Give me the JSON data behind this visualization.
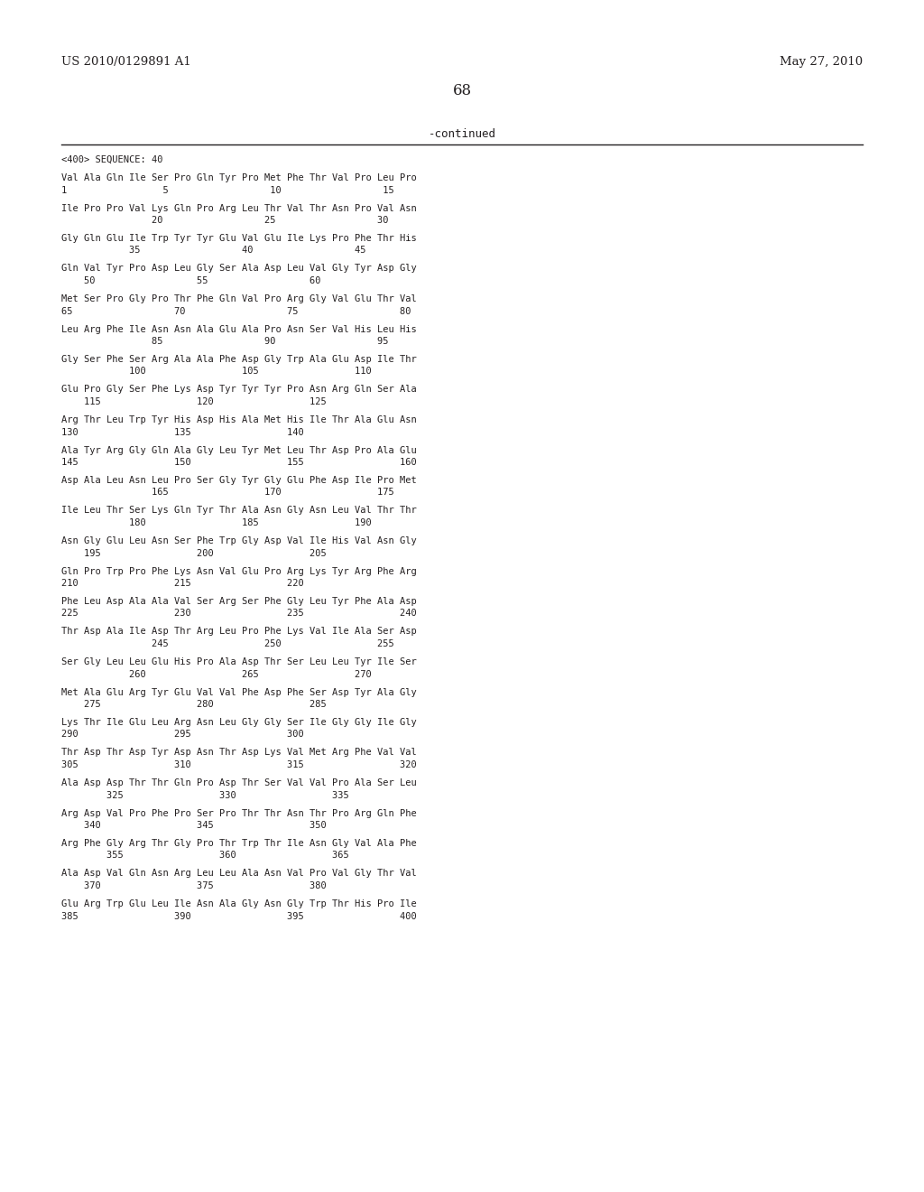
{
  "header_left": "US 2010/0129891 A1",
  "header_right": "May 27, 2010",
  "page_number": "68",
  "continued_text": "-continued",
  "background_color": "#ffffff",
  "text_color": "#231f20",
  "sequence_content": [
    "<400> SEQUENCE: 40",
    "",
    "Val Ala Gln Ile Ser Pro Gln Tyr Pro Met Phe Thr Val Pro Leu Pro",
    "1                 5                  10                  15",
    "",
    "Ile Pro Pro Val Lys Gln Pro Arg Leu Thr Val Thr Asn Pro Val Asn",
    "                20                  25                  30",
    "",
    "Gly Gln Glu Ile Trp Tyr Tyr Glu Val Glu Ile Lys Pro Phe Thr His",
    "            35                  40                  45",
    "",
    "Gln Val Tyr Pro Asp Leu Gly Ser Ala Asp Leu Val Gly Tyr Asp Gly",
    "    50                  55                  60",
    "",
    "Met Ser Pro Gly Pro Thr Phe Gln Val Pro Arg Gly Val Glu Thr Val",
    "65                  70                  75                  80",
    "",
    "Leu Arg Phe Ile Asn Asn Ala Glu Ala Pro Asn Ser Val His Leu His",
    "                85                  90                  95",
    "",
    "Gly Ser Phe Ser Arg Ala Ala Phe Asp Gly Trp Ala Glu Asp Ile Thr",
    "            100                 105                 110",
    "",
    "Glu Pro Gly Ser Phe Lys Asp Tyr Tyr Tyr Pro Asn Arg Gln Ser Ala",
    "    115                 120                 125",
    "",
    "Arg Thr Leu Trp Tyr His Asp His Ala Met His Ile Thr Ala Glu Asn",
    "130                 135                 140",
    "",
    "Ala Tyr Arg Gly Gln Ala Gly Leu Tyr Met Leu Thr Asp Pro Ala Glu",
    "145                 150                 155                 160",
    "",
    "Asp Ala Leu Asn Leu Pro Ser Gly Tyr Gly Glu Phe Asp Ile Pro Met",
    "                165                 170                 175",
    "",
    "Ile Leu Thr Ser Lys Gln Tyr Thr Ala Asn Gly Asn Leu Val Thr Thr",
    "            180                 185                 190",
    "",
    "Asn Gly Glu Leu Asn Ser Phe Trp Gly Asp Val Ile His Val Asn Gly",
    "    195                 200                 205",
    "",
    "Gln Pro Trp Pro Phe Lys Asn Val Glu Pro Arg Lys Tyr Arg Phe Arg",
    "210                 215                 220",
    "",
    "Phe Leu Asp Ala Ala Val Ser Arg Ser Phe Gly Leu Tyr Phe Ala Asp",
    "225                 230                 235                 240",
    "",
    "Thr Asp Ala Ile Asp Thr Arg Leu Pro Phe Lys Val Ile Ala Ser Asp",
    "                245                 250                 255",
    "",
    "Ser Gly Leu Leu Glu His Pro Ala Asp Thr Ser Leu Leu Tyr Ile Ser",
    "            260                 265                 270",
    "",
    "Met Ala Glu Arg Tyr Glu Val Val Phe Asp Phe Ser Asp Tyr Ala Gly",
    "    275                 280                 285",
    "",
    "Lys Thr Ile Glu Leu Arg Asn Leu Gly Gly Ser Ile Gly Gly Ile Gly",
    "290                 295                 300",
    "",
    "Thr Asp Thr Asp Tyr Asp Asn Thr Asp Lys Val Met Arg Phe Val Val",
    "305                 310                 315                 320",
    "",
    "Ala Asp Asp Thr Thr Gln Pro Asp Thr Ser Val Val Pro Ala Ser Leu",
    "        325                 330                 335",
    "",
    "Arg Asp Val Pro Phe Pro Ser Pro Thr Thr Asn Thr Pro Arg Gln Phe",
    "    340                 345                 350",
    "",
    "Arg Phe Gly Arg Thr Gly Pro Thr Trp Thr Ile Asn Gly Val Ala Phe",
    "        355                 360                 365",
    "",
    "Ala Asp Val Gln Asn Arg Leu Leu Ala Asn Val Pro Val Gly Thr Val",
    "    370                 375                 380",
    "",
    "Glu Arg Trp Glu Leu Ile Asn Ala Gly Asn Gly Trp Thr His Pro Ile",
    "385                 390                 395                 400"
  ]
}
